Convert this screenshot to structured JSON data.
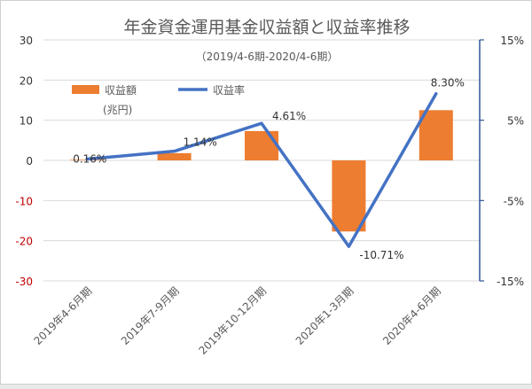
{
  "chart_data": {
    "type": "bar+line",
    "title": "年金資金運用基金収益額と収益率推移",
    "subtitle": "（2019/4-6期-2020/4-6期）",
    "categories": [
      "2019年4-6月期",
      "2019年7-9月期",
      "2019年10-12月期",
      "2020年1-3月期",
      "2020年4-6月期"
    ],
    "series": [
      {
        "name": "収益額",
        "type": "bar",
        "axis": "left",
        "values": [
          0.16,
          1.8,
          7.3,
          -17.7,
          12.5
        ],
        "color": "#ed7d31"
      },
      {
        "name": "収益率",
        "type": "line",
        "axis": "right",
        "values": [
          0.16,
          1.14,
          4.61,
          -10.71,
          8.3
        ],
        "color": "#4472c4"
      }
    ],
    "data_labels": [
      "0.16%",
      "1.14%",
      "4.61%",
      "-10.71%",
      "8.30%"
    ],
    "left_axis": {
      "min": -30,
      "max": 30,
      "step": 10,
      "ticks": [
        "30",
        "20",
        "10",
        "0",
        "-10",
        "-20",
        "-30"
      ],
      "unit_label": "(兆円)",
      "positive_color": "#333333",
      "negative_color": "#c00000"
    },
    "right_axis": {
      "min": -15,
      "max": 15,
      "ticks": [
        "15%",
        "5%",
        "-5%",
        "-15%"
      ],
      "tick_values": [
        15,
        5,
        -5,
        -15
      ],
      "color": "#2f5597"
    },
    "legend": {
      "position": "top-left",
      "bar_label": "収益額",
      "line_label": "収益率"
    },
    "grid": true
  }
}
